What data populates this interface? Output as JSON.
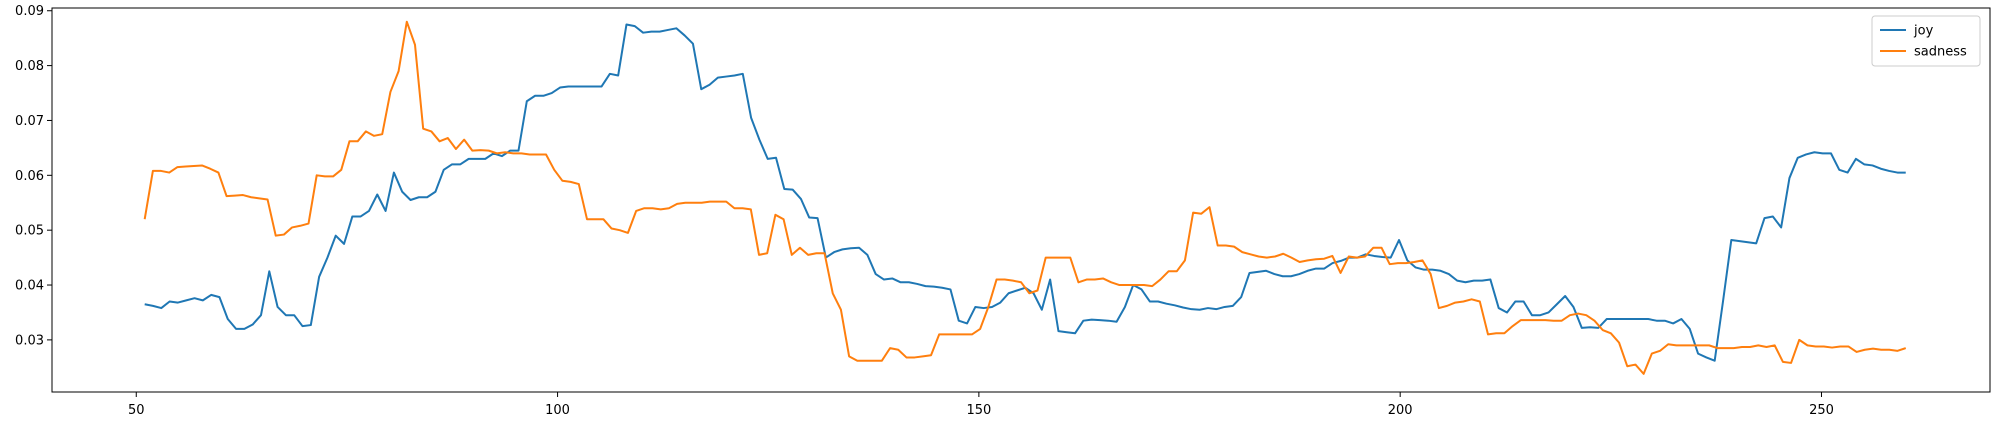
{
  "chart_data": {
    "type": "line",
    "title": "",
    "xlabel": "",
    "ylabel": "",
    "xlim": [
      40,
      270
    ],
    "ylim": [
      0.0205,
      0.0905
    ],
    "xticks": [
      50,
      100,
      150,
      200,
      250
    ],
    "xtick_labels": [
      "50",
      "100",
      "150",
      "200",
      "250"
    ],
    "yticks": [
      0.03,
      0.04,
      0.05,
      0.06,
      0.07,
      0.08,
      0.09
    ],
    "ytick_labels": [
      "0.03",
      "0.04",
      "0.05",
      "0.06",
      "0.07",
      "0.08",
      "0.09"
    ],
    "grid": false,
    "legend": "top-right",
    "x_start": 51,
    "x_end": 260,
    "series": [
      {
        "name": "joy",
        "color": "#1f77b4",
        "values": [
          0.0365,
          0.0362,
          0.0358,
          0.037,
          0.0368,
          0.0372,
          0.0376,
          0.0372,
          0.0382,
          0.0378,
          0.0338,
          0.032,
          0.032,
          0.0328,
          0.0345,
          0.0425,
          0.036,
          0.0345,
          0.0345,
          0.0325,
          0.0327,
          0.0415,
          0.045,
          0.049,
          0.0475,
          0.0525,
          0.0525,
          0.0535,
          0.0565,
          0.0535,
          0.0605,
          0.057,
          0.0555,
          0.056,
          0.056,
          0.057,
          0.061,
          0.062,
          0.062,
          0.063,
          0.063,
          0.063,
          0.064,
          0.0635,
          0.0645,
          0.0645,
          0.0735,
          0.0745,
          0.0745,
          0.075,
          0.076,
          0.0762,
          0.0762,
          0.0762,
          0.0762,
          0.0762,
          0.0785,
          0.0782,
          0.0875,
          0.0872,
          0.086,
          0.0862,
          0.0862,
          0.0865,
          0.0868,
          0.0855,
          0.084,
          0.0757,
          0.0765,
          0.0778,
          0.078,
          0.0782,
          0.0785,
          0.0705,
          0.0665,
          0.063,
          0.0632,
          0.0575,
          0.0574,
          0.0557,
          0.0523,
          0.0522,
          0.045,
          0.046,
          0.0465,
          0.0467,
          0.0468,
          0.0455,
          0.042,
          0.041,
          0.0412,
          0.0405,
          0.0405,
          0.0402,
          0.0398,
          0.0397,
          0.0395,
          0.0392,
          0.0335,
          0.033,
          0.036,
          0.0358,
          0.036,
          0.0368,
          0.0385,
          0.039,
          0.0395,
          0.0385,
          0.0355,
          0.041,
          0.0316,
          0.0314,
          0.0312,
          0.0335,
          0.0337,
          0.0336,
          0.0335,
          0.0333,
          0.036,
          0.04,
          0.0392,
          0.037,
          0.037,
          0.0366,
          0.0363,
          0.0359,
          0.0356,
          0.0355,
          0.0358,
          0.0356,
          0.036,
          0.0362,
          0.0378,
          0.0422,
          0.0424,
          0.0426,
          0.042,
          0.0416,
          0.0416,
          0.042,
          0.0426,
          0.043,
          0.043,
          0.044,
          0.0444,
          0.045,
          0.045,
          0.0456,
          0.0453,
          0.0451,
          0.045,
          0.0482,
          0.0445,
          0.0432,
          0.0428,
          0.0428,
          0.0426,
          0.042,
          0.0408,
          0.0405,
          0.0408,
          0.0408,
          0.041,
          0.0358,
          0.035,
          0.037,
          0.037,
          0.0345,
          0.0345,
          0.035,
          0.0365,
          0.038,
          0.036,
          0.0322,
          0.0323,
          0.0322,
          0.0338,
          0.0338,
          0.0338,
          0.0338,
          0.0338,
          0.0338,
          0.0335,
          0.0335,
          0.033,
          0.0338,
          0.032,
          0.0275,
          0.0268,
          0.0262,
          0.037,
          0.0482,
          0.048,
          0.0478,
          0.0476,
          0.0522,
          0.0525,
          0.0505,
          0.0595,
          0.0632,
          0.0638,
          0.0642,
          0.064,
          0.064,
          0.061,
          0.0605,
          0.063,
          0.062,
          0.0618,
          0.0612,
          0.0608,
          0.0605,
          0.0605
        ]
      },
      {
        "name": "sadness",
        "color": "#ff7f0e",
        "values": [
          0.052,
          0.0608,
          0.0608,
          0.0605,
          0.0615,
          0.0616,
          0.0617,
          0.0618,
          0.0612,
          0.0605,
          0.0562,
          0.0563,
          0.0564,
          0.056,
          0.0558,
          0.0556,
          0.049,
          0.0492,
          0.0505,
          0.0508,
          0.0512,
          0.06,
          0.0598,
          0.0598,
          0.061,
          0.0662,
          0.0662,
          0.068,
          0.0672,
          0.0675,
          0.0752,
          0.079,
          0.088,
          0.0838,
          0.0685,
          0.068,
          0.0662,
          0.0668,
          0.0648,
          0.0665,
          0.0645,
          0.0646,
          0.0645,
          0.064,
          0.0642,
          0.064,
          0.064,
          0.0638,
          0.0638,
          0.0638,
          0.061,
          0.059,
          0.0588,
          0.0584,
          0.052,
          0.052,
          0.052,
          0.0503,
          0.05,
          0.0495,
          0.0535,
          0.054,
          0.054,
          0.0538,
          0.054,
          0.0548,
          0.055,
          0.055,
          0.055,
          0.0552,
          0.0552,
          0.0552,
          0.054,
          0.054,
          0.0538,
          0.0455,
          0.0458,
          0.0528,
          0.052,
          0.0455,
          0.0468,
          0.0455,
          0.0458,
          0.0458,
          0.0385,
          0.0355,
          0.027,
          0.0262,
          0.0262,
          0.0262,
          0.0262,
          0.0285,
          0.0282,
          0.0268,
          0.0268,
          0.027,
          0.0272,
          0.031,
          0.031,
          0.031,
          0.031,
          0.031,
          0.032,
          0.036,
          0.041,
          0.041,
          0.0408,
          0.0405,
          0.0385,
          0.039,
          0.045,
          0.045,
          0.045,
          0.045,
          0.0405,
          0.041,
          0.041,
          0.0412,
          0.0405,
          0.04,
          0.04,
          0.04,
          0.04,
          0.0398,
          0.041,
          0.0425,
          0.0425,
          0.0445,
          0.0532,
          0.053,
          0.0542,
          0.0472,
          0.0472,
          0.047,
          0.046,
          0.0456,
          0.0452,
          0.045,
          0.0452,
          0.0457,
          0.045,
          0.0442,
          0.0445,
          0.0447,
          0.0448,
          0.0453,
          0.0422,
          0.0452,
          0.045,
          0.0452,
          0.0468,
          0.0468,
          0.0438,
          0.044,
          0.044,
          0.0442,
          0.0445,
          0.042,
          0.0358,
          0.0362,
          0.0368,
          0.037,
          0.0374,
          0.037,
          0.031,
          0.0312,
          0.0312,
          0.0325,
          0.0336,
          0.0336,
          0.0336,
          0.0336,
          0.0335,
          0.0335,
          0.0345,
          0.0348,
          0.0345,
          0.0335,
          0.0318,
          0.0312,
          0.0295,
          0.0252,
          0.0255,
          0.0238,
          0.0275,
          0.028,
          0.0292,
          0.029,
          0.029,
          0.029,
          0.029,
          0.029,
          0.0285,
          0.0285,
          0.0285,
          0.0287,
          0.0287,
          0.029,
          0.0287,
          0.029,
          0.026,
          0.0258,
          0.03,
          0.029,
          0.0288,
          0.0288,
          0.0286,
          0.0288,
          0.0288,
          0.0278,
          0.0282,
          0.0284,
          0.0282,
          0.0282,
          0.028,
          0.0285
        ]
      }
    ]
  }
}
